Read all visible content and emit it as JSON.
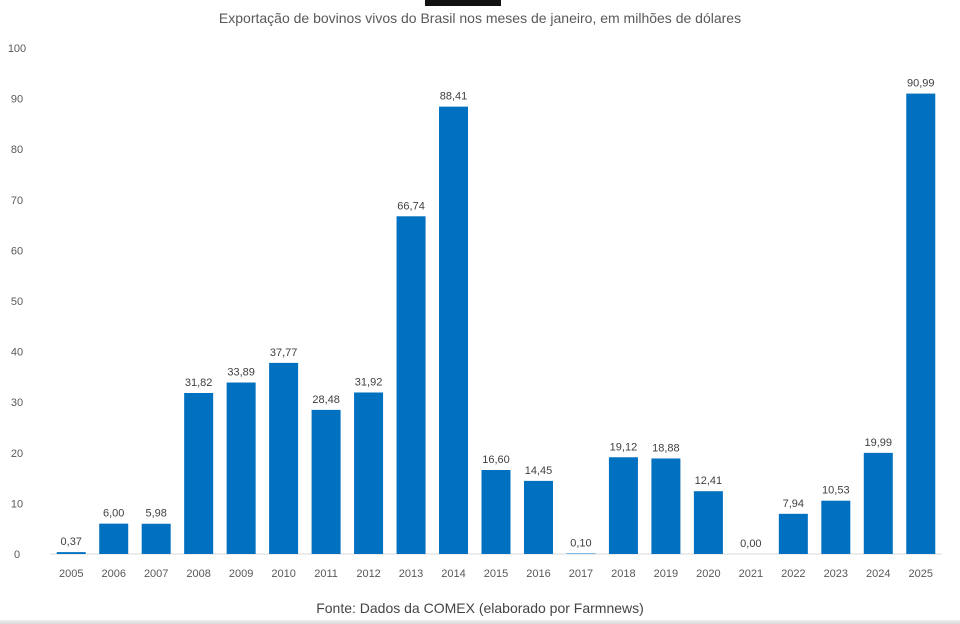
{
  "chart_data": {
    "type": "bar",
    "title": "Exportação de bovinos vivos do Brasil nos meses de janeiro, em milhões de dólares",
    "categories": [
      "2005",
      "2006",
      "2007",
      "2008",
      "2009",
      "2010",
      "2011",
      "2012",
      "2013",
      "2014",
      "2015",
      "2016",
      "2017",
      "2018",
      "2019",
      "2020",
      "2021",
      "2022",
      "2023",
      "2024",
      "2025"
    ],
    "values": [
      0.37,
      6.0,
      5.98,
      31.82,
      33.89,
      37.77,
      28.48,
      31.92,
      66.74,
      88.41,
      16.6,
      14.45,
      0.1,
      19.12,
      18.88,
      12.41,
      0.0,
      7.94,
      10.53,
      19.99,
      90.99
    ],
    "data_labels": [
      "0,37",
      "6,00",
      "5,98",
      "31,82",
      "33,89",
      "37,77",
      "28,48",
      "31,92",
      "66,74",
      "88,41",
      "16,60",
      "14,45",
      "0,10",
      "19,12",
      "18,88",
      "12,41",
      "0,00",
      "7,94",
      "10,53",
      "19,99",
      "90,99"
    ],
    "yticks": [
      0,
      10,
      20,
      30,
      40,
      50,
      60,
      70,
      80,
      90,
      100
    ],
    "ylim": [
      0,
      100
    ],
    "grid": false,
    "legend": "none",
    "bar_color": "#0070c0",
    "xlabel": "",
    "ylabel": ""
  },
  "source": "Fonte: Dados da COMEX (elaborado por Farmnews)"
}
